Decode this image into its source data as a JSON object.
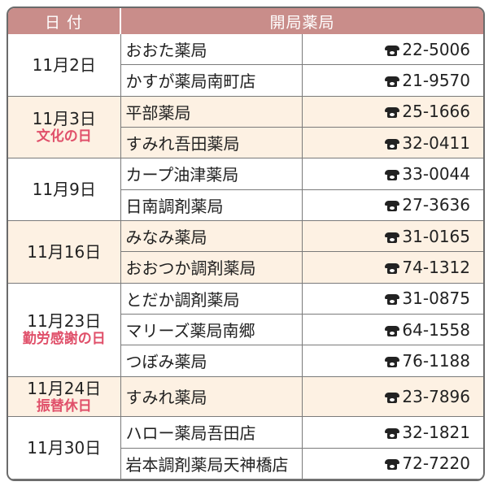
{
  "header": {
    "date": "日 付",
    "pharmacy": "開局薬局"
  },
  "colors": {
    "header_bg": "#c98d8a",
    "band_bg": "#fdf1e3",
    "holiday": "#e0506a"
  },
  "rows": [
    {
      "date": "11月2日",
      "holiday": "",
      "band": false,
      "pharmacies": [
        {
          "name": "おおた薬局",
          "phone": "22-5006"
        },
        {
          "name": "かすが薬局南町店",
          "phone": "21-9570"
        }
      ]
    },
    {
      "date": "11月3日",
      "holiday": "文化の日",
      "band": true,
      "pharmacies": [
        {
          "name": "平部薬局",
          "phone": "25-1666"
        },
        {
          "name": "すみれ吾田薬局",
          "phone": "32-0411"
        }
      ]
    },
    {
      "date": "11月9日",
      "holiday": "",
      "band": false,
      "pharmacies": [
        {
          "name": "カープ油津薬局",
          "phone": "33-0044"
        },
        {
          "name": "日南調剤薬局",
          "phone": "27-3636"
        }
      ]
    },
    {
      "date": "11月16日",
      "holiday": "",
      "band": true,
      "pharmacies": [
        {
          "name": "みなみ薬局",
          "phone": "31-0165"
        },
        {
          "name": "おおつか調剤薬局",
          "phone": "74-1312"
        }
      ]
    },
    {
      "date": "11月23日",
      "holiday": "勤労感謝の日",
      "band": false,
      "pharmacies": [
        {
          "name": "とだか調剤薬局",
          "phone": "31-0875"
        },
        {
          "name": "マリーズ薬局南郷",
          "phone": "64-1558"
        },
        {
          "name": "つぼみ薬局",
          "phone": "76-1188"
        }
      ]
    },
    {
      "date": "11月24日",
      "holiday": "振替休日",
      "band": true,
      "pharmacies": [
        {
          "name": "すみれ薬局",
          "phone": "23-7896"
        }
      ]
    },
    {
      "date": "11月30日",
      "holiday": "",
      "band": false,
      "pharmacies": [
        {
          "name": "ハロー薬局吾田店",
          "phone": "32-1821"
        },
        {
          "name": "岩本調剤薬局天神橋店",
          "phone": "72-7220"
        }
      ]
    }
  ]
}
